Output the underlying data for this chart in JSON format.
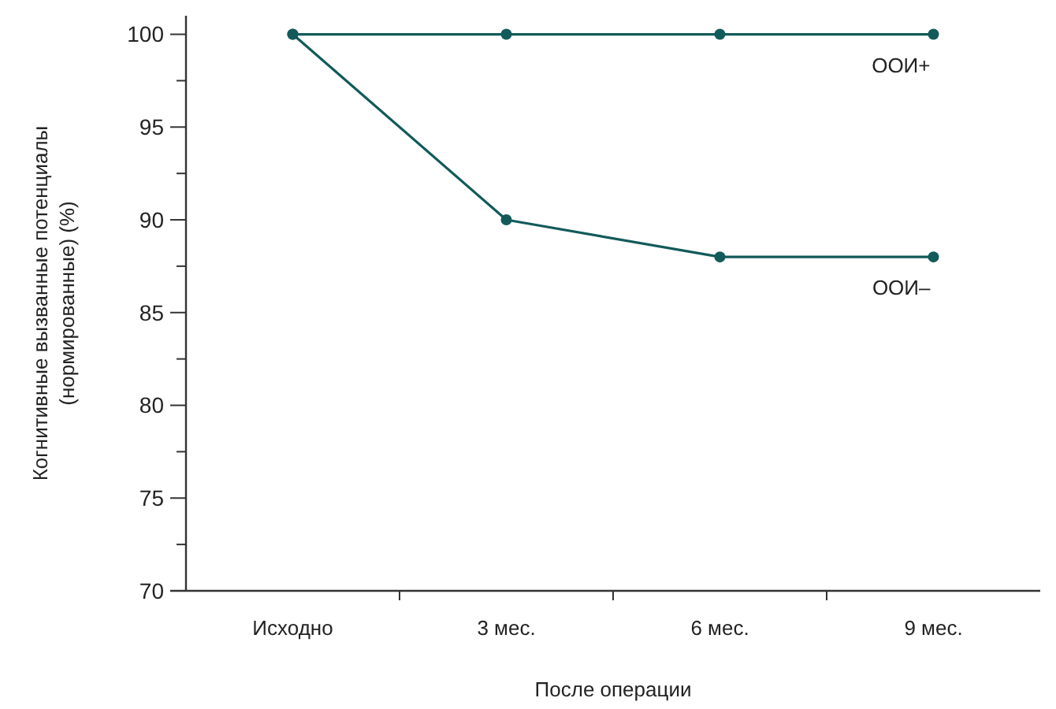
{
  "chart_data": {
    "type": "line",
    "xlabel": "После операции",
    "ylabel": "Когнитивные вызванные потенциалы (нормированные) (%)",
    "categories": [
      "Исходно",
      "3 мес.",
      "6 мес.",
      "9 мес."
    ],
    "series": [
      {
        "name": "ООИ+",
        "color": "#135a5a",
        "values": [
          100,
          100,
          100,
          100
        ]
      },
      {
        "name": "ООИ–",
        "color": "#135a5a",
        "values": [
          100,
          90,
          88,
          88
        ]
      }
    ],
    "ylim": [
      70,
      101
    ],
    "yticks": [
      70,
      {
        "value": 72.5,
        "label": null
      },
      75,
      {
        "value": 77.5,
        "label": null
      },
      80,
      {
        "value": 82.5,
        "label": null
      },
      85,
      {
        "value": 87.5,
        "label": null
      },
      90,
      {
        "value": 92.5,
        "label": null
      },
      95,
      {
        "value": 97.5,
        "label": null
      },
      100
    ],
    "marker": "circle",
    "line_style": "solid",
    "grid": false
  }
}
